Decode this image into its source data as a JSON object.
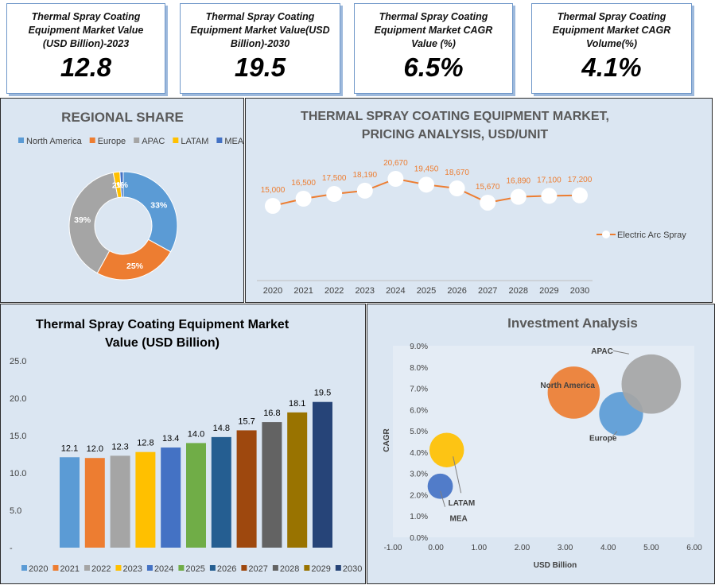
{
  "kpis": [
    {
      "title": "Thermal Spray Coating Equipment Market Value (USD Billion)-2023",
      "value": "12.8"
    },
    {
      "title": "Thermal Spray Coating Equipment Market Value(USD Billion)-2030",
      "value": "19.5"
    },
    {
      "title": "Thermal Spray Coating Equipment Market CAGR Value (%)",
      "value": "6.5%"
    },
    {
      "title": "Thermal Spray Coating Equipment Market CAGR Volume(%)",
      "value": "4.1%"
    }
  ],
  "colors": {
    "north_america": "#5b9bd5",
    "europe": "#ed7d31",
    "apac": "#a5a5a5",
    "latam": "#ffc000",
    "mea": "#4472c4",
    "line": "#ed7d31",
    "panel_bg": "#dbe6f2",
    "bars": [
      "#5b9bd5",
      "#ed7d31",
      "#a5a5a5",
      "#ffc000",
      "#4472c4",
      "#70ad47",
      "#255e91",
      "#9e480e",
      "#636363",
      "#997300",
      "#264478"
    ]
  },
  "chart_data": [
    {
      "type": "pie",
      "title": "REGIONAL SHARE",
      "legend_position": "top",
      "labels": [
        "North America",
        "Europe",
        "APAC",
        "LATAM",
        "MEA"
      ],
      "values": [
        33,
        25,
        39,
        2,
        1
      ],
      "data_labels": [
        "33%",
        "25%",
        "39%",
        "2%",
        "1%"
      ]
    },
    {
      "type": "line",
      "title": "THERMAL SPRAY COATING EQUIPMENT MARKET, PRICING ANALYSIS, USD/UNIT",
      "title_lines": [
        "THERMAL SPRAY COATING EQUIPMENT MARKET,",
        "PRICING ANALYSIS, USD/UNIT"
      ],
      "categories": [
        "2020",
        "2021",
        "2022",
        "2023",
        "2024",
        "2025",
        "2026",
        "2027",
        "2028",
        "2029",
        "2030"
      ],
      "series": [
        {
          "name": "Electric Arc Spray",
          "values": [
            15000,
            16500,
            17500,
            18190,
            20670,
            19450,
            18670,
            15670,
            16890,
            17100,
            17200
          ]
        }
      ],
      "data_labels": [
        "15,000",
        "16,500",
        "17,500",
        "18,190",
        "20,670",
        "19,450",
        "18,670",
        "15,670",
        "16,890",
        "17,100",
        "17,200"
      ],
      "legend_position": "right"
    },
    {
      "type": "bar",
      "title": "Thermal Spray Coating Equipment Market Value (USD Billion)",
      "title_lines": [
        "Thermal Spray Coating Equipment Market",
        "Value (USD Billion)"
      ],
      "categories": [
        "2020",
        "2021",
        "2022",
        "2023",
        "2024",
        "2025",
        "2026",
        "2027",
        "2028",
        "2029",
        "2030"
      ],
      "values": [
        12.1,
        12.0,
        12.3,
        12.8,
        13.4,
        14.0,
        14.8,
        15.7,
        16.8,
        18.1,
        19.5
      ],
      "data_labels": [
        "12.1",
        "12.0",
        "12.3",
        "12.8",
        "13.4",
        "14.0",
        "14.8",
        "15.7",
        "16.8",
        "18.1",
        "19.5"
      ],
      "y_ticks": [
        "25.0",
        "20.0",
        "15.0",
        "10.0",
        "5.0",
        "-"
      ],
      "ylim": [
        0,
        25
      ],
      "legend_position": "bottom"
    },
    {
      "type": "scatter",
      "title": "Investment Analysis",
      "xlabel": "USD Billion",
      "ylabel": "CAGR",
      "x_ticks": [
        "-1.00",
        "0.00",
        "1.00",
        "2.00",
        "3.00",
        "4.00",
        "5.00",
        "6.00"
      ],
      "y_ticks": [
        "9.0%",
        "8.0%",
        "7.0%",
        "6.0%",
        "5.0%",
        "4.0%",
        "3.0%",
        "2.0%",
        "1.0%",
        "0.0%"
      ],
      "xlim": [
        -1,
        6
      ],
      "ylim": [
        0,
        9
      ],
      "points": [
        {
          "label": "North America",
          "x": 3.2,
          "y": 6.8,
          "size": 3.2
        },
        {
          "label": "Europe",
          "x": 4.3,
          "y": 5.8,
          "size": 2.4
        },
        {
          "label": "APAC",
          "x": 5.0,
          "y": 7.2,
          "size": 3.9
        },
        {
          "label": "LATAM",
          "x": 0.25,
          "y": 4.1,
          "size": 1.5
        },
        {
          "label": "MEA",
          "x": 0.1,
          "y": 2.4,
          "size": 0.6
        }
      ]
    }
  ]
}
